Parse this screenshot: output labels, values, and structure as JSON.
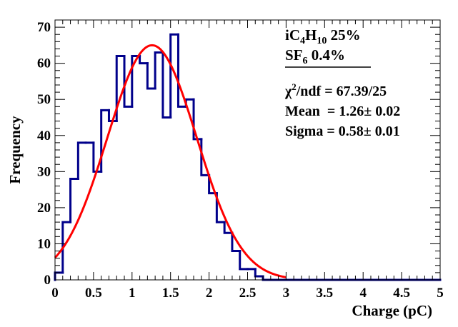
{
  "chart_data": {
    "type": "histogram",
    "xlabel": "Charge (pC)",
    "ylabel": "Frequency",
    "xlim": [
      0,
      5
    ],
    "ylim": [
      0,
      72
    ],
    "bin_width": 0.1,
    "x_ticks": [
      {
        "value": 0,
        "label": "0"
      },
      {
        "value": 0.5,
        "label": "0.5"
      },
      {
        "value": 1,
        "label": "1"
      },
      {
        "value": 1.5,
        "label": "1.5"
      },
      {
        "value": 2,
        "label": "2"
      },
      {
        "value": 2.5,
        "label": "2.5"
      },
      {
        "value": 3,
        "label": "3"
      },
      {
        "value": 3.5,
        "label": "3.5"
      },
      {
        "value": 4,
        "label": "4"
      },
      {
        "value": 4.5,
        "label": "4.5"
      },
      {
        "value": 5,
        "label": "5"
      }
    ],
    "y_ticks": [
      {
        "value": 0,
        "label": "0"
      },
      {
        "value": 10,
        "label": "10"
      },
      {
        "value": 20,
        "label": "20"
      },
      {
        "value": 30,
        "label": "30"
      },
      {
        "value": 40,
        "label": "40"
      },
      {
        "value": 50,
        "label": "50"
      },
      {
        "value": 60,
        "label": "60"
      },
      {
        "value": 70,
        "label": "70"
      }
    ],
    "bin_edges": [
      0,
      0.1,
      0.2,
      0.3,
      0.4,
      0.5,
      0.6,
      0.7,
      0.8,
      0.9,
      1.0,
      1.1,
      1.2,
      1.3,
      1.4,
      1.5,
      1.6,
      1.7,
      1.8,
      1.9,
      2.0,
      2.1,
      2.2,
      2.3,
      2.4,
      2.5,
      2.6,
      2.7,
      2.8,
      2.9,
      3.0,
      5.0
    ],
    "counts": [
      2,
      16,
      28,
      38,
      38,
      30,
      47,
      44,
      62,
      48,
      62,
      60,
      53,
      63,
      45,
      68,
      48,
      50,
      39,
      29,
      24,
      16,
      13,
      8,
      3,
      3,
      1,
      0,
      0,
      0,
      0
    ],
    "histogram_color": "#00008b",
    "fit": {
      "function": "gaussian",
      "amplitude": 65,
      "mean": 1.26,
      "sigma": 0.58,
      "x_range": [
        0,
        3
      ],
      "color": "#ff0000"
    },
    "legend": {
      "gas_line1": {
        "pre": "iC",
        "sub1": "4",
        "mid": "H",
        "sub2": "10",
        "post": " 25%"
      },
      "gas_line2": {
        "pre": "SF",
        "sub": "6",
        "post": " 0.4%"
      },
      "chi2": {
        "symbol": "χ",
        "sup": "2",
        "rest": "/ndf = 67.39/25"
      },
      "mean_text": "Mean  = 1.26± 0.02",
      "sigma_text": "Sigma = 0.58± 0.01"
    }
  }
}
